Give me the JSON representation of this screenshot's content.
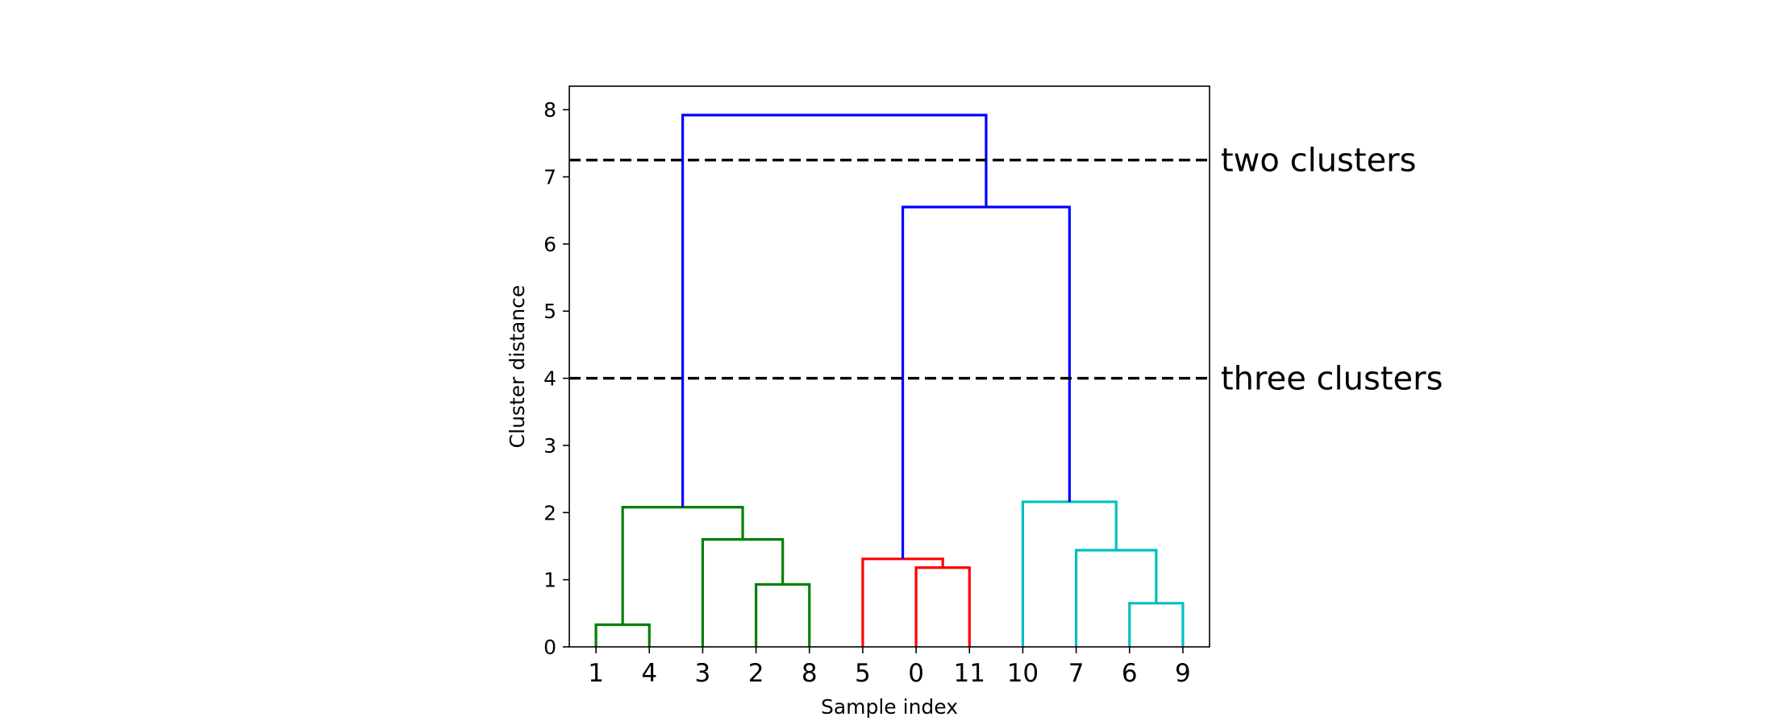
{
  "chart_data": {
    "type": "dendrogram",
    "xlabel": "Sample index",
    "ylabel": "Cluster distance",
    "ylim": [
      0,
      8.35
    ],
    "yticks": [
      0,
      1,
      2,
      3,
      4,
      5,
      6,
      7,
      8
    ],
    "leaf_order": [
      "1",
      "4",
      "3",
      "2",
      "8",
      "5",
      "0",
      "11",
      "10",
      "7",
      "6",
      "9"
    ],
    "colors": {
      "green": "#008000",
      "red": "#ff0000",
      "cyan": "#00bfbf",
      "blue": "#0000ff",
      "cut_line": "#000000"
    },
    "merges": [
      {
        "left": "leaf:1",
        "right": "leaf:4",
        "height": 0.33,
        "color": "green"
      },
      {
        "left": "leaf:2",
        "right": "leaf:8",
        "height": 0.93,
        "color": "green"
      },
      {
        "left": "leaf:3",
        "right": "node:1",
        "height": 1.6,
        "color": "green"
      },
      {
        "left": "node:0",
        "right": "node:2",
        "height": 2.08,
        "color": "green"
      },
      {
        "left": "leaf:0",
        "right": "leaf:11",
        "height": 1.18,
        "color": "red"
      },
      {
        "left": "leaf:5",
        "right": "node:4",
        "height": 1.31,
        "color": "red"
      },
      {
        "left": "leaf:6",
        "right": "leaf:9",
        "height": 0.65,
        "color": "cyan"
      },
      {
        "left": "leaf:7",
        "right": "node:6",
        "height": 1.44,
        "color": "cyan"
      },
      {
        "left": "leaf:10",
        "right": "node:7",
        "height": 2.16,
        "color": "cyan"
      },
      {
        "left": "node:5",
        "right": "node:8",
        "height": 6.55,
        "color": "blue"
      },
      {
        "left": "node:3",
        "right": "node:9",
        "height": 7.92,
        "color": "blue"
      }
    ],
    "cut_lines": [
      {
        "y": 7.25,
        "label": "two clusters"
      },
      {
        "y": 4.0,
        "label": "three clusters"
      }
    ],
    "grid": false,
    "legend": "none"
  }
}
